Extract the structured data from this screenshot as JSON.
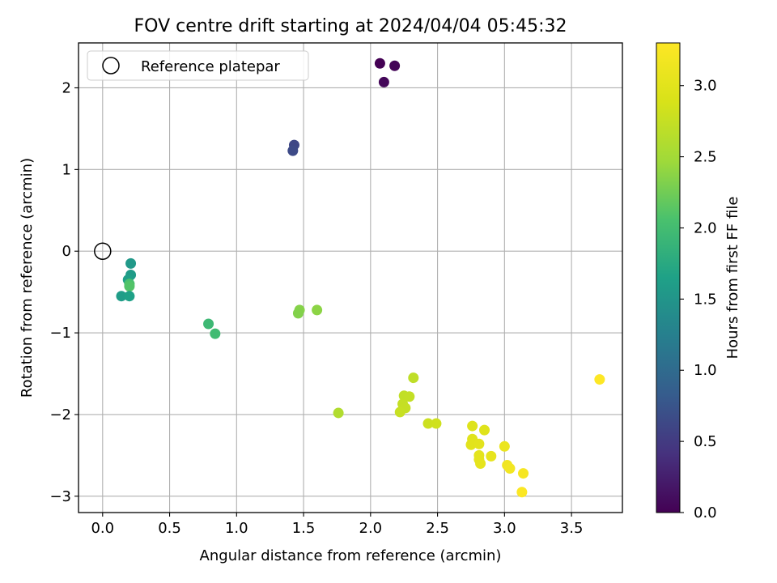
{
  "chart_data": {
    "type": "scatter",
    "title": "FOV centre drift starting at 2024/04/04 05:45:32",
    "xlabel": "Angular distance from reference (arcmin)",
    "ylabel": "Rotation from reference (arcmin)",
    "xlim": [
      -0.18,
      3.88
    ],
    "ylim": [
      -3.2,
      2.55
    ],
    "xticks": [
      0.0,
      0.5,
      1.0,
      1.5,
      2.0,
      2.5,
      3.0,
      3.5
    ],
    "xtick_labels": [
      "0.0",
      "0.5",
      "1.0",
      "1.5",
      "2.0",
      "2.5",
      "3.0",
      "3.5"
    ],
    "yticks": [
      -3,
      -2,
      -1,
      0,
      1,
      2
    ],
    "ytick_labels": [
      "−3",
      "−2",
      "−1",
      "0",
      "1",
      "2"
    ],
    "grid": true,
    "legend": {
      "placement": "top-left",
      "entries": [
        {
          "label": "Reference platepar",
          "marker": "open-circle"
        }
      ]
    },
    "reference_point": {
      "x": 0.0,
      "y": 0.0
    },
    "colorbar": {
      "label": "Hours from first FF file",
      "colormap": "viridis",
      "range": [
        0.0,
        3.3
      ],
      "ticks": [
        0.0,
        0.5,
        1.0,
        1.5,
        2.0,
        2.5,
        3.0
      ],
      "tick_labels": [
        "0.0",
        "0.5",
        "1.0",
        "1.5",
        "2.0",
        "2.5",
        "3.0"
      ]
    },
    "points": [
      {
        "x": 2.07,
        "y": 2.3,
        "c": 0.0
      },
      {
        "x": 2.18,
        "y": 2.27,
        "c": 0.03
      },
      {
        "x": 2.1,
        "y": 2.07,
        "c": 0.05
      },
      {
        "x": 1.43,
        "y": 1.3,
        "c": 0.62
      },
      {
        "x": 1.42,
        "y": 1.23,
        "c": 0.65
      },
      {
        "x": 0.21,
        "y": -0.15,
        "c": 1.55
      },
      {
        "x": 0.21,
        "y": -0.29,
        "c": 1.58
      },
      {
        "x": 0.19,
        "y": -0.35,
        "c": 1.62
      },
      {
        "x": 0.2,
        "y": -0.4,
        "c": 2.05
      },
      {
        "x": 0.2,
        "y": -0.43,
        "c": 2.1
      },
      {
        "x": 0.14,
        "y": -0.55,
        "c": 1.6
      },
      {
        "x": 0.2,
        "y": -0.55,
        "c": 1.65
      },
      {
        "x": 0.79,
        "y": -0.89,
        "c": 1.95
      },
      {
        "x": 0.84,
        "y": -1.01,
        "c": 1.98
      },
      {
        "x": 1.47,
        "y": -0.72,
        "c": 2.35
      },
      {
        "x": 1.46,
        "y": -0.76,
        "c": 2.33
      },
      {
        "x": 1.6,
        "y": -0.72,
        "c": 2.38
      },
      {
        "x": 1.76,
        "y": -1.98,
        "c": 2.6
      },
      {
        "x": 2.32,
        "y": -1.55,
        "c": 2.7
      },
      {
        "x": 2.25,
        "y": -1.77,
        "c": 2.72
      },
      {
        "x": 2.29,
        "y": -1.78,
        "c": 2.73
      },
      {
        "x": 2.24,
        "y": -1.87,
        "c": 2.74
      },
      {
        "x": 2.26,
        "y": -1.92,
        "c": 2.75
      },
      {
        "x": 2.22,
        "y": -1.97,
        "c": 2.76
      },
      {
        "x": 2.43,
        "y": -2.11,
        "c": 2.8
      },
      {
        "x": 2.49,
        "y": -2.11,
        "c": 2.82
      },
      {
        "x": 2.76,
        "y": -2.14,
        "c": 2.95
      },
      {
        "x": 2.85,
        "y": -2.19,
        "c": 2.97
      },
      {
        "x": 2.76,
        "y": -2.3,
        "c": 2.98
      },
      {
        "x": 2.76,
        "y": -2.35,
        "c": 2.99
      },
      {
        "x": 2.75,
        "y": -2.37,
        "c": 3.0
      },
      {
        "x": 2.81,
        "y": -2.36,
        "c": 3.01
      },
      {
        "x": 2.81,
        "y": -2.5,
        "c": 3.02
      },
      {
        "x": 2.81,
        "y": -2.55,
        "c": 3.03
      },
      {
        "x": 2.82,
        "y": -2.6,
        "c": 3.04
      },
      {
        "x": 2.9,
        "y": -2.51,
        "c": 3.05
      },
      {
        "x": 3.0,
        "y": -2.39,
        "c": 3.1
      },
      {
        "x": 3.02,
        "y": -2.62,
        "c": 3.15
      },
      {
        "x": 3.04,
        "y": -2.66,
        "c": 3.18
      },
      {
        "x": 3.14,
        "y": -2.72,
        "c": 3.22
      },
      {
        "x": 3.13,
        "y": -2.95,
        "c": 3.28
      },
      {
        "x": 3.71,
        "y": -1.57,
        "c": 3.3
      }
    ]
  }
}
